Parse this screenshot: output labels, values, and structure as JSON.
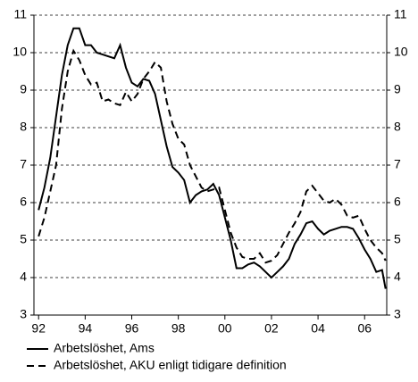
{
  "chart_data": {
    "type": "line",
    "x": [
      1992,
      1992.25,
      1992.5,
      1992.75,
      1993,
      1993.25,
      1993.5,
      1993.75,
      1994,
      1994.25,
      1994.5,
      1994.75,
      1995,
      1995.25,
      1995.5,
      1995.75,
      1996,
      1996.25,
      1996.5,
      1996.75,
      1997,
      1997.25,
      1997.5,
      1997.75,
      1998,
      1998.25,
      1998.5,
      1998.75,
      1999,
      1999.25,
      1999.5,
      1999.75,
      2000,
      2000.25,
      2000.5,
      2000.75,
      2001,
      2001.25,
      2001.5,
      2001.75,
      2002,
      2002.25,
      2002.5,
      2002.75,
      2003,
      2003.25,
      2003.5,
      2003.75,
      2004,
      2004.25,
      2004.5,
      2004.75,
      2005,
      2005.25,
      2005.5,
      2005.75,
      2006,
      2006.25,
      2006.5,
      2006.75,
      2006.9
    ],
    "series": [
      {
        "name": "Arbetslöshet, Ams",
        "color": "#000000",
        "dash": "solid",
        "values": [
          5.8,
          6.4,
          7.2,
          8.3,
          9.4,
          10.2,
          10.65,
          10.65,
          10.2,
          10.2,
          10.0,
          9.95,
          9.9,
          9.85,
          10.2,
          9.6,
          9.2,
          9.1,
          9.3,
          9.25,
          8.9,
          8.2,
          7.5,
          6.95,
          6.8,
          6.6,
          6.0,
          6.2,
          6.3,
          6.35,
          6.5,
          6.2,
          5.6,
          5.0,
          4.25,
          4.25,
          4.35,
          4.4,
          4.3,
          4.15,
          4.0,
          4.15,
          4.3,
          4.5,
          4.9,
          5.15,
          5.45,
          5.5,
          5.3,
          5.15,
          5.25,
          5.3,
          5.35,
          5.35,
          5.3,
          5.05,
          4.75,
          4.5,
          4.15,
          4.2,
          3.7
        ]
      },
      {
        "name": "Arbetslöshet, AKU enligt tidigare definition",
        "color": "#000000",
        "dash": "dashed",
        "values": [
          5.1,
          5.6,
          6.3,
          7.0,
          8.5,
          9.5,
          10.05,
          9.8,
          9.4,
          9.15,
          9.2,
          8.7,
          8.75,
          8.65,
          8.6,
          8.95,
          8.7,
          8.9,
          9.3,
          9.5,
          9.75,
          9.6,
          8.7,
          8.1,
          7.7,
          7.55,
          7.0,
          6.7,
          6.4,
          6.3,
          6.35,
          6.4,
          5.8,
          5.2,
          4.8,
          4.55,
          4.5,
          4.5,
          4.65,
          4.4,
          4.45,
          4.6,
          4.9,
          5.2,
          5.45,
          5.75,
          6.3,
          6.45,
          6.25,
          6.05,
          6.0,
          6.1,
          5.95,
          5.65,
          5.6,
          5.65,
          5.3,
          5.0,
          4.8,
          4.65,
          4.45
        ]
      }
    ],
    "xlim": [
      1991.8,
      2006.95
    ],
    "xticks": [
      {
        "value": 1992,
        "label": "92"
      },
      {
        "value": 1994,
        "label": "94"
      },
      {
        "value": 1996,
        "label": "96"
      },
      {
        "value": 1998,
        "label": "98"
      },
      {
        "value": 2000,
        "label": "00"
      },
      {
        "value": 2002,
        "label": "02"
      },
      {
        "value": 2004,
        "label": "04"
      },
      {
        "value": 2006,
        "label": "06"
      }
    ],
    "ylim": [
      3,
      11
    ],
    "yticks": [
      3,
      4,
      5,
      6,
      7,
      8,
      9,
      10,
      11
    ],
    "y2lim": [
      3,
      11
    ],
    "y2ticks": [
      3,
      4,
      5,
      6,
      7,
      8,
      9,
      10,
      11
    ],
    "grid": true,
    "legend": "bottom"
  }
}
